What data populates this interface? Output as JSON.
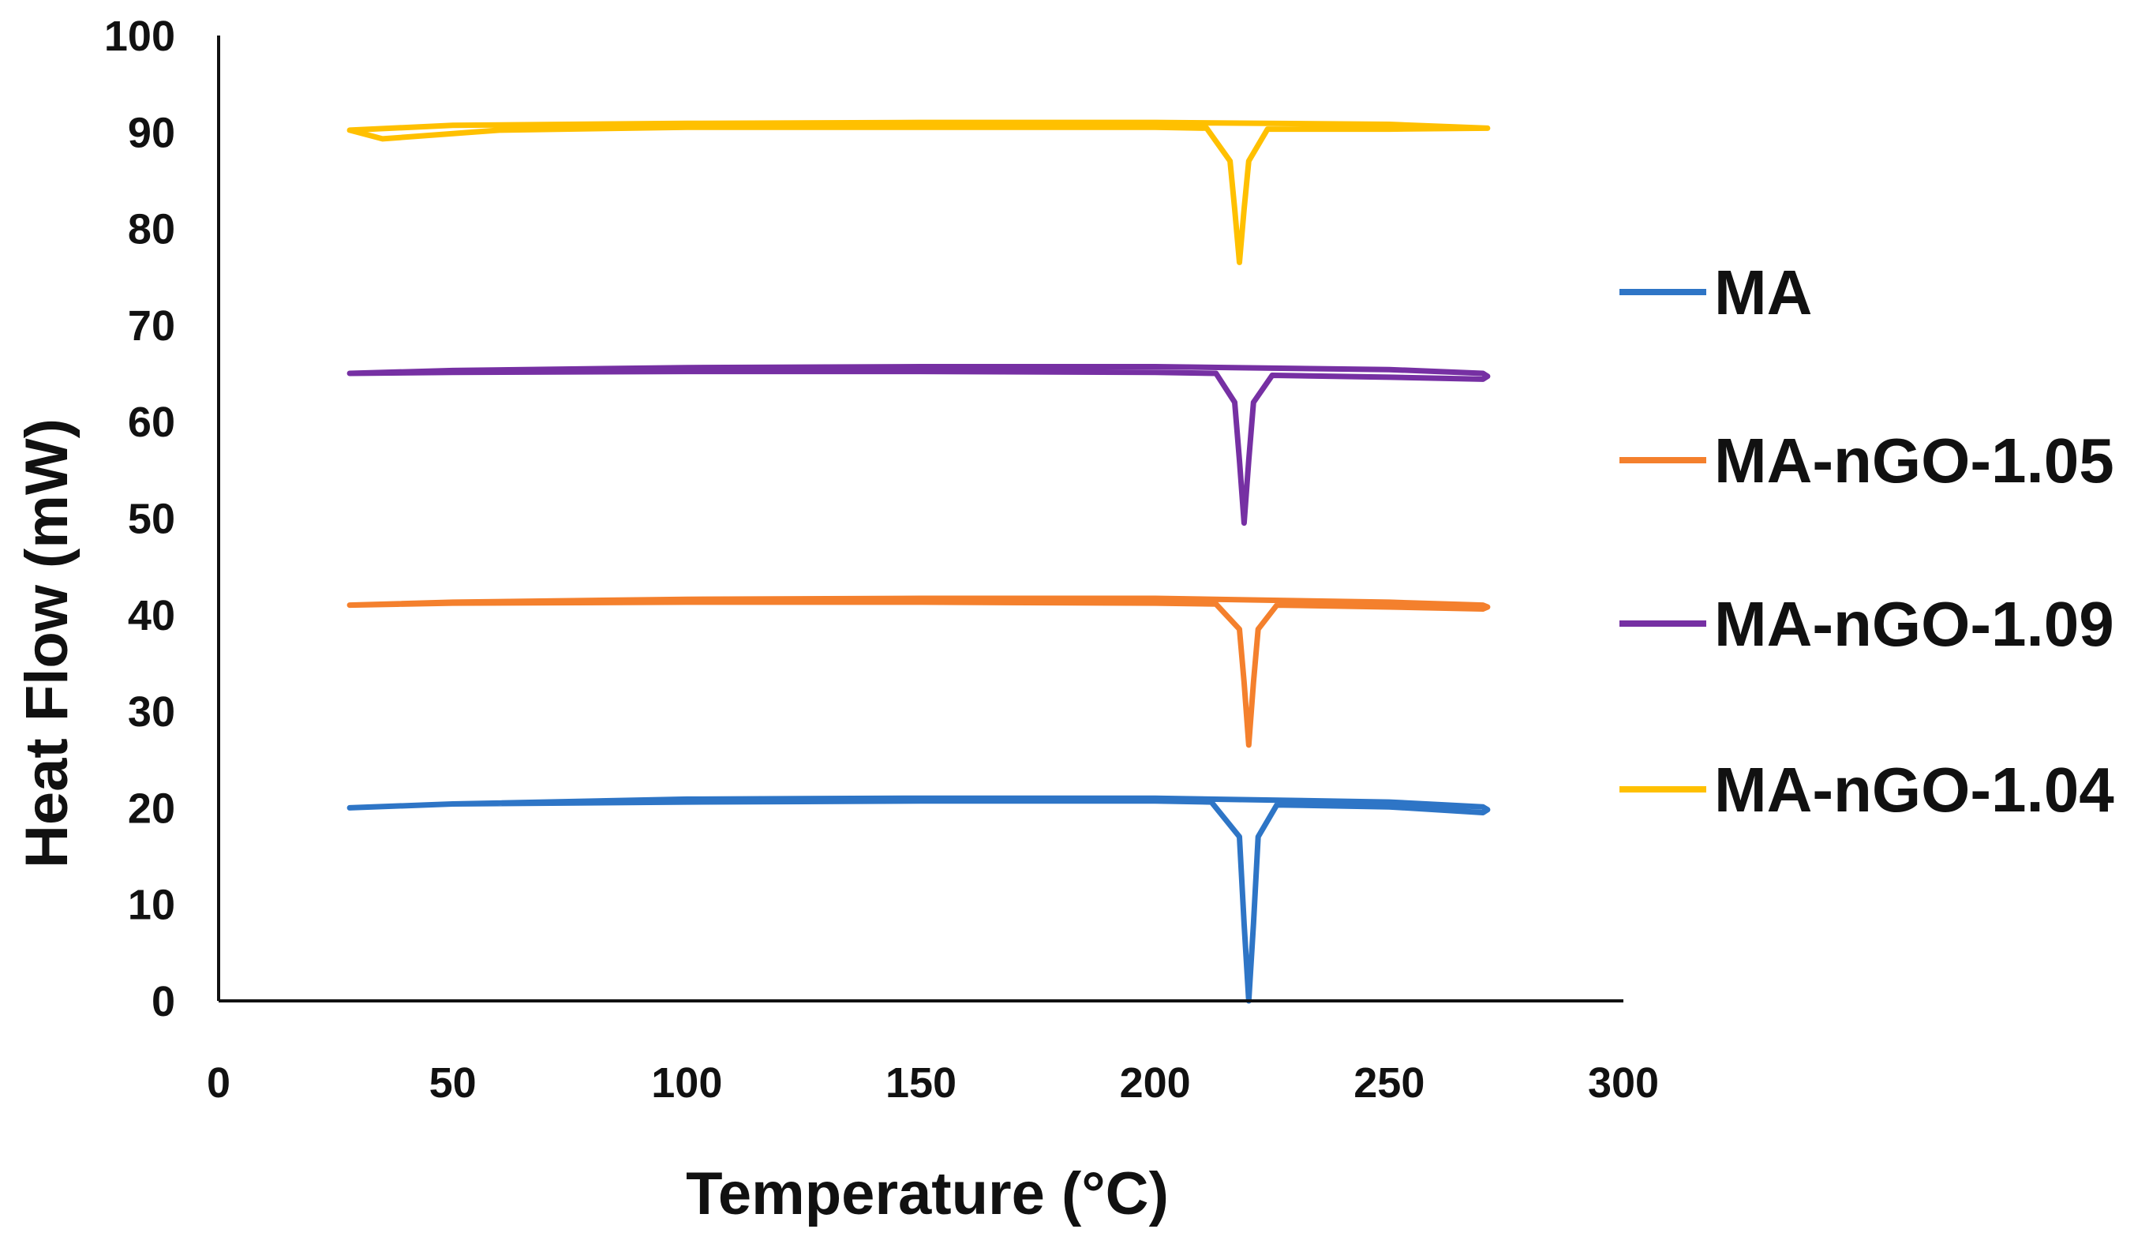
{
  "chart_data": {
    "type": "line",
    "title": "",
    "xlabel": "Temperature (°C)",
    "ylabel": "Heat Flow (mW)",
    "xlim": [
      0,
      300
    ],
    "ylim": [
      0,
      100
    ],
    "xticks": [
      "0",
      "50",
      "100",
      "150",
      "200",
      "250",
      "300"
    ],
    "yticks": [
      "0",
      "10",
      "20",
      "30",
      "40",
      "50",
      "60",
      "70",
      "80",
      "90",
      "100"
    ],
    "grid": false,
    "legend_position": "right",
    "series": [
      {
        "name": "MA",
        "color": "#2e75c6",
        "x": [
          28,
          50,
          100,
          150,
          200,
          212,
          218,
          219,
          220,
          221,
          222,
          226,
          250,
          270,
          271,
          270,
          250,
          200,
          150,
          100,
          50,
          28
        ],
        "y": [
          20,
          20.4,
          20.6,
          20.7,
          20.7,
          20.6,
          17,
          8,
          0,
          8,
          17,
          20.3,
          20.1,
          19.5,
          19.8,
          20.1,
          20.6,
          21,
          21,
          20.9,
          20.4,
          20
        ]
      },
      {
        "name": "MA-nGO-1.05",
        "color": "#f4802d",
        "x": [
          28,
          50,
          100,
          150,
          200,
          213,
          218,
          219,
          220,
          221,
          222,
          226,
          250,
          270,
          271,
          270,
          250,
          200,
          150,
          100,
          50,
          28
        ],
        "y": [
          41,
          41.2,
          41.3,
          41.3,
          41.2,
          41.1,
          38.5,
          33,
          26.5,
          33,
          38.5,
          41,
          40.8,
          40.6,
          40.8,
          41,
          41.3,
          41.7,
          41.7,
          41.6,
          41.3,
          41
        ]
      },
      {
        "name": "MA-nGO-1.09",
        "color": "#7630a3",
        "x": [
          28,
          50,
          100,
          150,
          200,
          213,
          217,
          218,
          219,
          220,
          221,
          225,
          250,
          270,
          271,
          270,
          250,
          200,
          150,
          100,
          50,
          28
        ],
        "y": [
          65,
          65.1,
          65.2,
          65.2,
          65.1,
          65,
          62,
          56,
          49.5,
          56,
          62,
          64.8,
          64.6,
          64.4,
          64.7,
          65,
          65.4,
          65.7,
          65.7,
          65.6,
          65.3,
          65
        ]
      },
      {
        "name": "MA-nGO-1.04",
        "color": "#ffc000",
        "x": [
          35,
          60,
          100,
          150,
          200,
          211,
          216,
          217,
          218,
          219,
          220,
          224,
          250,
          271,
          250,
          200,
          150,
          100,
          50,
          28,
          35
        ],
        "y": [
          89.3,
          90.2,
          90.5,
          90.5,
          90.5,
          90.4,
          87,
          82,
          76.5,
          82,
          87,
          90.3,
          90.3,
          90.4,
          90.8,
          91,
          91,
          90.9,
          90.7,
          90.2,
          89.3
        ]
      }
    ]
  }
}
